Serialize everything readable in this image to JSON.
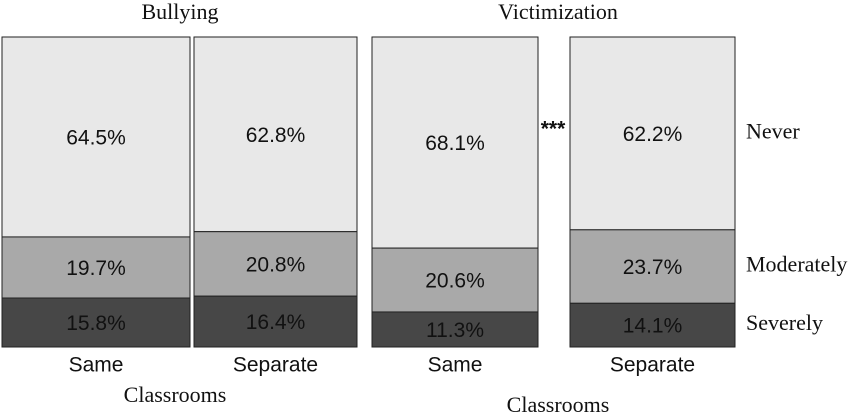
{
  "chart_data": [
    {
      "type": "bar",
      "stacked": true,
      "title": "Bullying",
      "categories": [
        "Same",
        "Separate"
      ],
      "x_label": "Classrooms",
      "series": [
        {
          "color": "#e8e8e8",
          "values": [
            64.5,
            62.8
          ],
          "value_labels": [
            "64.5%",
            "62.8%"
          ]
        },
        {
          "color": "#a9a9a9",
          "values": [
            19.7,
            20.8
          ],
          "value_labels": [
            "19.7%",
            "20.8%"
          ]
        },
        {
          "color": "#474747",
          "values": [
            15.8,
            16.4
          ],
          "value_labels": [
            "15.8%",
            "16.4%"
          ]
        }
      ]
    },
    {
      "type": "bar",
      "stacked": true,
      "title": "Victimization",
      "categories": [
        "Same",
        "Separate"
      ],
      "x_label": "Classrooms",
      "annotation": "***",
      "legend": "right",
      "series": [
        {
          "name": "Never",
          "color": "#e8e8e8",
          "values": [
            68.1,
            62.2
          ],
          "value_labels": [
            "68.1%",
            "62.2%"
          ]
        },
        {
          "name": "Moderately",
          "color": "#a9a9a9",
          "values": [
            20.6,
            23.7
          ],
          "value_labels": [
            "20.6%",
            "23.7%"
          ]
        },
        {
          "name": "Severely",
          "color": "#474747",
          "values": [
            11.3,
            14.1
          ],
          "value_labels": [
            "11.3%",
            "14.1%"
          ]
        }
      ]
    }
  ]
}
